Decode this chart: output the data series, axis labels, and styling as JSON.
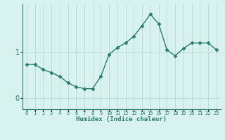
{
  "xlabel": "Humidex (Indice chaleur)",
  "x_values": [
    0,
    1,
    2,
    3,
    4,
    5,
    6,
    7,
    8,
    9,
    10,
    11,
    12,
    13,
    14,
    15,
    16,
    17,
    18,
    19,
    20,
    21,
    22,
    23
  ],
  "y_values": [
    0.73,
    0.73,
    0.62,
    0.55,
    0.47,
    0.33,
    0.24,
    0.2,
    0.2,
    0.47,
    0.95,
    1.1,
    1.2,
    1.35,
    1.58,
    1.83,
    1.62,
    1.05,
    0.92,
    1.08,
    1.2,
    1.2,
    1.2,
    1.05
  ],
  "line_color": "#2a7d6e",
  "marker_color": "#2a7d6e",
  "bg_color": "#d8f2f0",
  "grid_color": "#b8d8d4",
  "axis_color": "#2a7d6e",
  "tick_color": "#2a7d6e",
  "label_color": "#2a7d6e",
  "ylim": [
    -0.25,
    2.05
  ],
  "yticks": [
    0,
    1
  ],
  "xlim": [
    -0.5,
    23.5
  ]
}
